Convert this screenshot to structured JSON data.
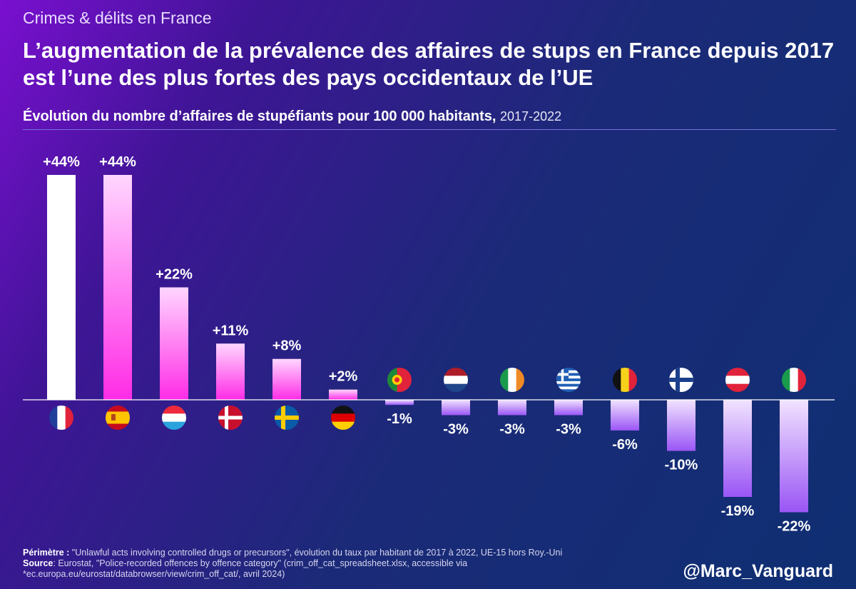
{
  "kicker": "Crimes & délits en France",
  "title": "L’augmentation de la prévalence des affaires de stups en France depuis 2017 est l’une des plus fortes des pays occidentaux de l’UE",
  "subtitle": {
    "bold": "Évolution du nombre d’affaires de stupéfiants pour 100 000 habitants,",
    "years": "2017-2022"
  },
  "footer": {
    "perimeter_label": "Périmètre :",
    "perimeter_text": "\"Unlawful acts involving controlled drugs or precursors\", évolution du taux par habitant de 2017 à 2022, UE-15 hors Roy.-Uni",
    "source_label": "Source",
    "source_text": ": Eurostat, \"Police-recorded offences by offence category\" (crim_off_cat_spreadsheet.xlsx, accessible via *ec.europa.eu/eurostat/databrowser/view/crim_off_cat/, avril 2024)"
  },
  "handle": "@Marc_Vanguard",
  "colors": {
    "positive_top": "#ffd6ff",
    "positive_bottom": "#ff2ce6",
    "negative_top": "#f1e3ff",
    "negative_bottom": "#9a55f5",
    "france": "#ffffff",
    "baseline": "#ffffff"
  },
  "chart_data": {
    "type": "bar",
    "title": "Évolution du nombre d’affaires de stupéfiants pour 100 000 habitants, 2017-2022",
    "xlabel": "",
    "ylabel": "",
    "unit": "%",
    "ylim": [
      -22,
      44
    ],
    "categories": [
      "France",
      "Espagne",
      "Luxembourg",
      "Danemark",
      "Suède",
      "Allemagne",
      "Portugal",
      "Pays-Bas",
      "Irlande",
      "Grèce",
      "Belgique",
      "Finlande",
      "Autriche",
      "Italie"
    ],
    "flags": [
      "flag-france",
      "flag-spain",
      "flag-luxembourg",
      "flag-denmark",
      "flag-sweden",
      "flag-germany",
      "flag-portugal",
      "flag-netherlands",
      "flag-ireland",
      "flag-greece",
      "flag-belgium",
      "flag-finland",
      "flag-austria",
      "flag-italy"
    ],
    "values": [
      44,
      44,
      22,
      11,
      8,
      2,
      -1,
      -3,
      -3,
      -3,
      -6,
      -10,
      -19,
      -22
    ],
    "labels": [
      "+44%",
      "+44%",
      "+22%",
      "+11%",
      "+8%",
      "+2%",
      "-1%",
      "-3%",
      "-3%",
      "-3%",
      "-6%",
      "-10%",
      "-19%",
      "-22%"
    ]
  }
}
